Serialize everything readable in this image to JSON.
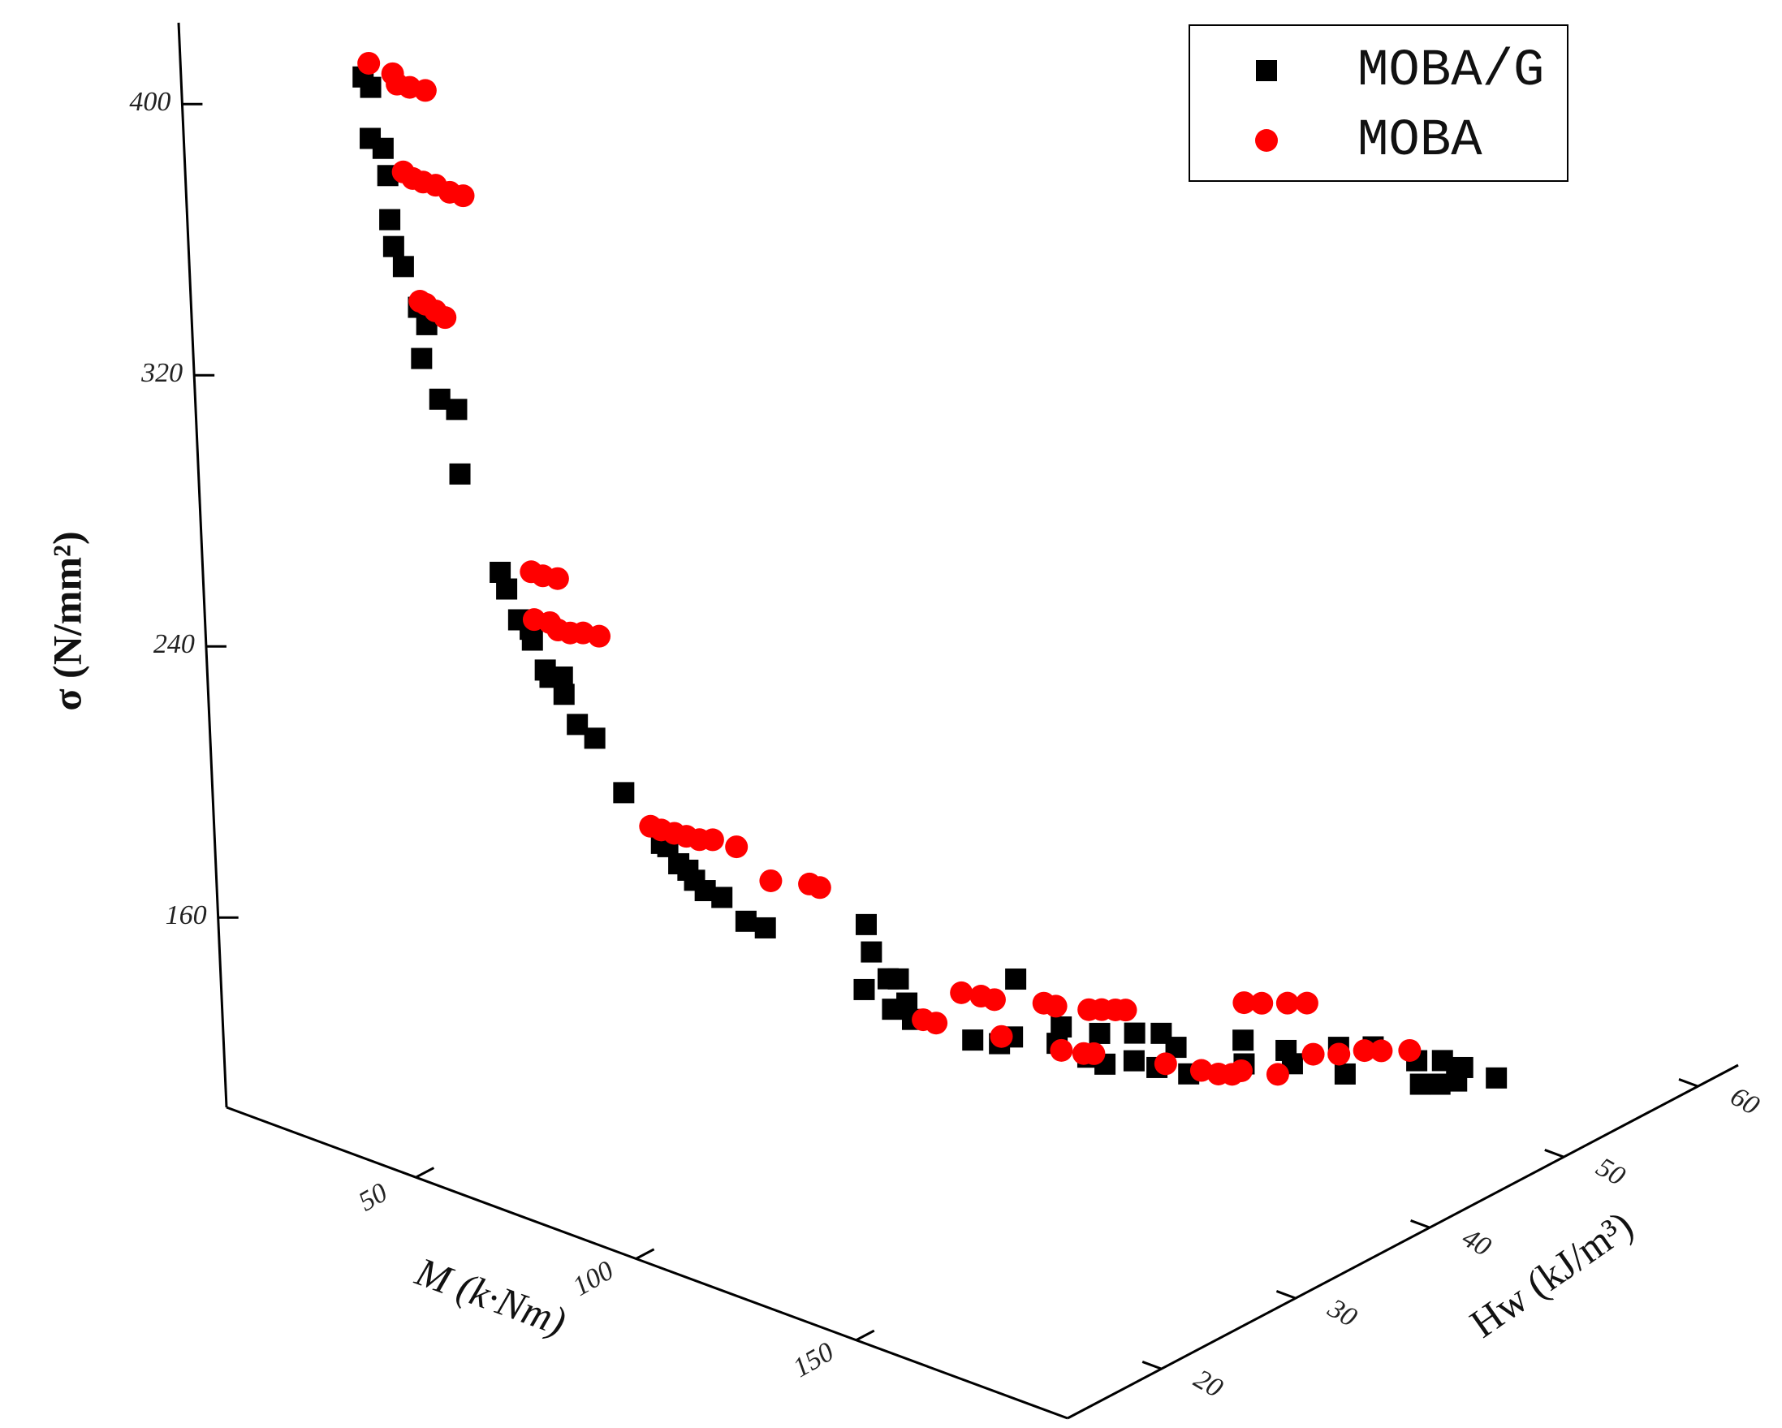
{
  "chart_data": {
    "type": "scatter3d",
    "x_label": "M (k·Nm)",
    "y_label": "Hw (kJ/m³)",
    "z_label": "σ (N/mm²)",
    "xlim": [
      7,
      198
    ],
    "ylim": [
      13,
      63
    ],
    "zlim": [
      104,
      424
    ],
    "xticks": [
      50,
      100,
      150
    ],
    "yticks": [
      20,
      30,
      40,
      50,
      60
    ],
    "zticks": [
      160,
      240,
      320,
      400
    ],
    "legend": "upper right",
    "series": [
      {
        "name": "MOBA/G",
        "color": "#000000",
        "marker": "square",
        "x": [
          31.3,
          32.3,
          32.0,
          33.6,
          34.1,
          34.1,
          34.4,
          35.5,
          37.3,
          38.4,
          37.5,
          39.7,
          41.9,
          42.0,
          46.8,
          47.5,
          49.0,
          50.3,
          50.7,
          52.1,
          52.8,
          54.4,
          54.6,
          56.1,
          58.4,
          62.0,
          66.7,
          67.5,
          68.9,
          70.0,
          70.8,
          72.2,
          74.4,
          77.5,
          80.0,
          93.5,
          94.1,
          93.0,
          96.1,
          97.5,
          96.5,
          98.6,
          99.1,
          107.1,
          110.7,
          112.5,
          113.2,
          118.3,
          119.1,
          122.4,
          124.1,
          124.7,
          128.7,
          132.3,
          128.6,
          131.6,
          134.3,
          135.7,
          143.2,
          143.2,
          148.9,
          149.6,
          156.0,
          156.6,
          160.5,
          166.6,
          169.2,
          171.5,
          172.4,
          176.9,
          166.3,
          169.7
        ],
        "y": [
          18.6,
          18.8,
          18.7,
          19.1,
          19.2,
          19.2,
          19.3,
          19.6,
          20.0,
          20.2,
          20.0,
          20.5,
          21.0,
          21.0,
          22.1,
          22.3,
          22.6,
          23.0,
          23.0,
          23.4,
          23.5,
          23.9,
          23.9,
          24.3,
          24.8,
          25.6,
          26.7,
          26.9,
          27.2,
          27.5,
          27.7,
          28.0,
          28.5,
          29.2,
          29.8,
          32.9,
          33.0,
          32.7,
          33.5,
          33.8,
          33.6,
          34.0,
          34.2,
          36.0,
          36.8,
          37.2,
          37.4,
          38.6,
          38.7,
          39.5,
          39.9,
          40.0,
          41.0,
          41.8,
          40.9,
          41.6,
          42.2,
          42.6,
          44.3,
          44.3,
          45.6,
          45.8,
          47.2,
          47.4,
          48.3,
          49.7,
          50.3,
          50.8,
          51.0,
          52.0,
          49.6,
          50.4
        ],
        "z": [
          408,
          405,
          390,
          387,
          379,
          366,
          358,
          352,
          340,
          335,
          325,
          313,
          310,
          291,
          262,
          257,
          248,
          245,
          242,
          233,
          231,
          231,
          226,
          217,
          213,
          197,
          182,
          181,
          176,
          174,
          171,
          168,
          166,
          159,
          157,
          158,
          150,
          139,
          142,
          142,
          133,
          135,
          130,
          124,
          123,
          125,
          142,
          123,
          128,
          119,
          126,
          117,
          126,
          126,
          118,
          116,
          122,
          114,
          124,
          117,
          121,
          117,
          122,
          114,
          122,
          111,
          111,
          112,
          116,
          113,
          118,
          118
        ]
      },
      {
        "name": "MOBA",
        "color": "#ff0000",
        "marker": "circle",
        "x": [
          32.1,
          35.3,
          35.9,
          37.5,
          39.5,
          36.1,
          37.3,
          38.7,
          40.3,
          42.2,
          44.0,
          37.7,
          38.4,
          39.6,
          40.8,
          50.8,
          52.5,
          54.3,
          51.0,
          53.0,
          54.2,
          55.7,
          57.4,
          59.5,
          65.3,
          66.8,
          68.5,
          70.0,
          71.7,
          73.5,
          76.7,
          81.1,
          86.2,
          87.6,
          100.6,
          102.3,
          105.9,
          108.5,
          110.3,
          110.9,
          116.9,
          118.4,
          118.9,
          121.8,
          123.2,
          122.8,
          124.5,
          126.4,
          127.8,
          132.7,
          137.4,
          139.7,
          141.6,
          142.8,
          143.5,
          146.0,
          149.4,
          152.0,
          147.7,
          152.6,
          156.0,
          159.4,
          161.7,
          165.4
        ],
        "y": [
          18.8,
          19.5,
          19.6,
          20.0,
          20.5,
          19.7,
          20.0,
          20.3,
          20.7,
          21.1,
          21.5,
          20.0,
          20.2,
          20.5,
          20.8,
          23.1,
          23.4,
          23.9,
          23.1,
          23.6,
          23.8,
          24.2,
          24.6,
          25.1,
          26.4,
          26.7,
          27.1,
          27.5,
          27.9,
          28.3,
          29.0,
          30.0,
          31.2,
          31.5,
          34.5,
          34.9,
          35.7,
          36.3,
          36.7,
          36.9,
          38.2,
          38.6,
          38.7,
          39.4,
          39.7,
          39.6,
          40.0,
          40.4,
          40.7,
          41.9,
          43.0,
          43.5,
          43.9,
          44.2,
          44.4,
          44.9,
          45.7,
          46.3,
          45.3,
          46.4,
          47.2,
          48.0,
          48.5,
          49.4
        ],
        "z": [
          412,
          409,
          406,
          405,
          404,
          380,
          378,
          377,
          376,
          374,
          373,
          342,
          341,
          339,
          337,
          262,
          261,
          260,
          248,
          247,
          245,
          244,
          244,
          243,
          187,
          186,
          185,
          184,
          183,
          183,
          181,
          171,
          170,
          169,
          130,
          129,
          138,
          137,
          136,
          125,
          135,
          134,
          121,
          120,
          120,
          133,
          133,
          133,
          133,
          117,
          115,
          114,
          114,
          115,
          135,
          135,
          135,
          135,
          114,
          120,
          120,
          121,
          121,
          121
        ]
      }
    ]
  }
}
